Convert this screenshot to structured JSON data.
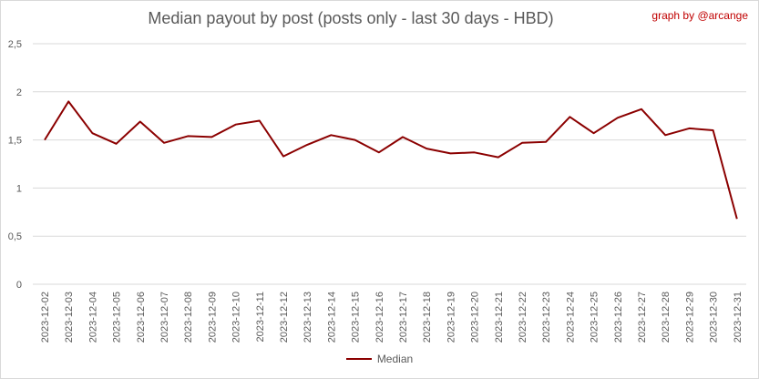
{
  "chart_data": {
    "type": "line",
    "title": "Median payout by post (posts only - last 30 days - HBD)",
    "credit": "graph by @arcange",
    "xlabel": "",
    "ylabel": "",
    "ylim": [
      0,
      2.5
    ],
    "y_ticks": [
      "0",
      "0,5",
      "1",
      "1,5",
      "2",
      "2,5"
    ],
    "y_tick_values": [
      0,
      0.5,
      1,
      1.5,
      2,
      2.5
    ],
    "grid": true,
    "legend_position": "bottom",
    "categories": [
      "2023-12-02",
      "2023-12-03",
      "2023-12-04",
      "2023-12-05",
      "2023-12-06",
      "2023-12-07",
      "2023-12-08",
      "2023-12-09",
      "2023-12-10",
      "2023-12-11",
      "2023-12-12",
      "2023-12-13",
      "2023-12-14",
      "2023-12-15",
      "2023-12-16",
      "2023-12-17",
      "2023-12-18",
      "2023-12-19",
      "2023-12-20",
      "2023-12-21",
      "2023-12-22",
      "2023-12-23",
      "2023-12-24",
      "2023-12-25",
      "2023-12-26",
      "2023-12-27",
      "2023-12-28",
      "2023-12-29",
      "2023-12-30",
      "2023-12-31"
    ],
    "series": [
      {
        "name": "Median",
        "color": "#8b0000",
        "values": [
          1.5,
          1.9,
          1.57,
          1.46,
          1.69,
          1.47,
          1.54,
          1.53,
          1.66,
          1.7,
          1.33,
          1.45,
          1.55,
          1.5,
          1.37,
          1.53,
          1.41,
          1.36,
          1.37,
          1.32,
          1.47,
          1.48,
          1.74,
          1.57,
          1.73,
          1.82,
          1.55,
          1.62,
          1.6,
          0.68
        ]
      }
    ]
  }
}
